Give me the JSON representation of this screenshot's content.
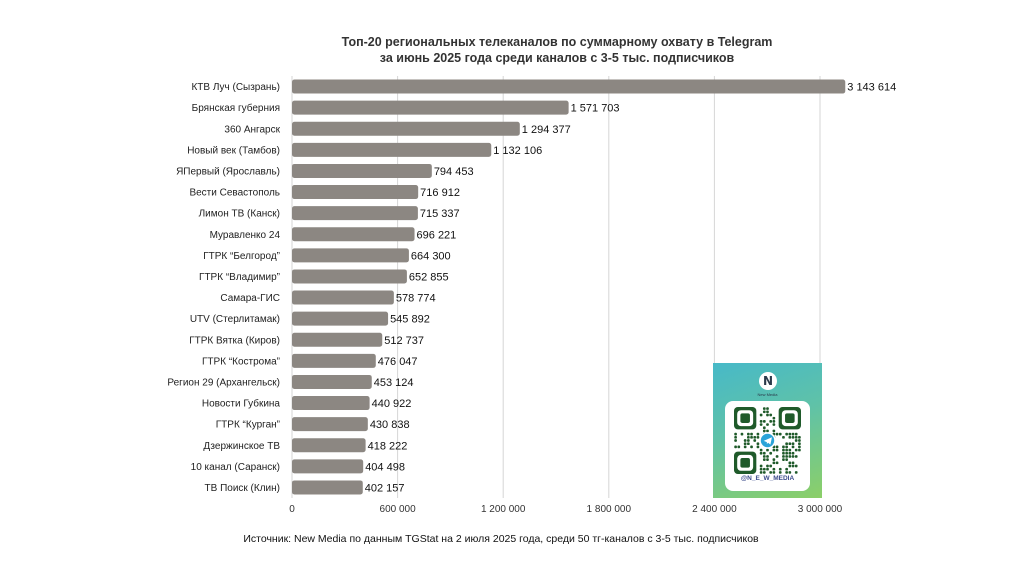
{
  "title_line1": "Топ-20 региональных телеканалов по суммарному охвату в Telegram",
  "title_line2": "за июнь 2025 года среди каналов с 3-5 тыс. подписчиков",
  "source": "Источник: New Media по данным TGStat на 2 июля 2025 года, среди 50 тг-каналов с 3-5 тыс. подписчиков",
  "qr": {
    "logo": "N",
    "logo_sub": "New Media",
    "handle": "@N_E_W_MEDIA",
    "icon": "telegram-icon"
  },
  "colors": {
    "bar": "#8c8782",
    "grid": "#d6d6d6",
    "label": "#222222"
  },
  "chart_data": {
    "type": "bar",
    "orientation": "horizontal",
    "categories": [
      "КТВ Луч (Сызрань)",
      "Брянская губерния",
      "360 Ангарск",
      "Новый век (Тамбов)",
      "ЯПервый (Ярославль)",
      "Вести Севастополь",
      "Лимон ТВ (Канск)",
      "Муравленко 24",
      "ГТРК “Белгород”",
      "ГТРК “Владимир”",
      "Самара-ГИС",
      "UTV (Стерлитамак)",
      "ГТРК Вятка (Киров)",
      "ГТРК “Кострома”",
      "Регион 29 (Архангельск)",
      "Новости Губкина",
      "ГТРК “Курган”",
      "Дзержинское ТВ",
      "10 канал (Саранск)",
      "ТВ Поиск (Клин)"
    ],
    "values": [
      3143614,
      1571703,
      1294377,
      1132106,
      794453,
      716912,
      715337,
      696221,
      664300,
      652855,
      578774,
      545892,
      512737,
      476047,
      453124,
      440922,
      430838,
      418222,
      404498,
      402157
    ],
    "value_labels": [
      "3 143 614",
      "1 571 703",
      "1 294 377",
      "1 132 106",
      "794 453",
      "716 912",
      "715 337",
      "696 221",
      "664 300",
      "652 855",
      "578 774",
      "545 892",
      "512 737",
      "476 047",
      "453 124",
      "440 922",
      "430 838",
      "418 222",
      "404 498",
      "402 157"
    ],
    "ticks": [
      0,
      600000,
      1200000,
      1800000,
      2400000,
      3000000
    ],
    "tick_labels": [
      "0",
      "600 000",
      "1 200 000",
      "1 800 000",
      "2 400 000",
      "3 000 000"
    ],
    "xlim": [
      0,
      3000000
    ],
    "grid": true,
    "legend": "none"
  }
}
